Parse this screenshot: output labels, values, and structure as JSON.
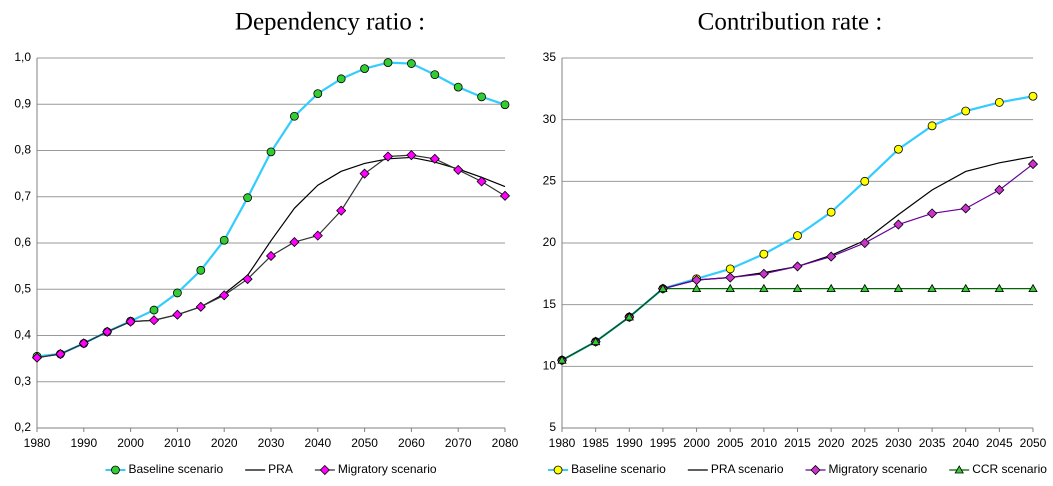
{
  "chart_data": [
    {
      "type": "line",
      "title": "Dependency ratio :",
      "x": [
        1980,
        1985,
        1990,
        1995,
        2000,
        2005,
        2010,
        2015,
        2020,
        2025,
        2030,
        2035,
        2040,
        2045,
        2050,
        2055,
        2060,
        2065,
        2070,
        2075,
        2080
      ],
      "xlim": [
        1980,
        2080
      ],
      "xticks": [
        1980,
        1990,
        2000,
        2010,
        2020,
        2030,
        2040,
        2050,
        2060,
        2070,
        2080
      ],
      "ylim": [
        0.2,
        1.0
      ],
      "yticks": [
        {
          "value": 0.2,
          "label": "0,2"
        },
        {
          "value": 0.3,
          "label": "0,3"
        },
        {
          "value": 0.4,
          "label": "0,4"
        },
        {
          "value": 0.5,
          "label": "0,5"
        },
        {
          "value": 0.6,
          "label": "0,6"
        },
        {
          "value": 0.7,
          "label": "0,7"
        },
        {
          "value": 0.8,
          "label": "0,8"
        },
        {
          "value": 0.9,
          "label": "0,9"
        },
        {
          "value": 1.0,
          "label": "1,0"
        }
      ],
      "grid": true,
      "series": [
        {
          "name": "Baseline scenario",
          "color": "#33ccff",
          "marker": "circle",
          "marker_color": "#33cc33",
          "values": [
            0.355,
            0.36,
            0.383,
            0.408,
            0.431,
            0.455,
            0.492,
            0.541,
            0.606,
            0.698,
            0.797,
            0.874,
            0.923,
            0.955,
            0.977,
            0.99,
            0.988,
            0.964,
            0.937,
            0.916,
            0.899
          ]
        },
        {
          "name": "PRA",
          "color": "#000000",
          "marker": "none",
          "marker_color": "#000000",
          "values": [
            0.352,
            0.36,
            0.383,
            0.408,
            0.43,
            0.433,
            0.445,
            0.462,
            0.49,
            0.53,
            0.605,
            0.675,
            0.725,
            0.755,
            0.772,
            0.782,
            0.785,
            0.775,
            0.76,
            0.742,
            0.722
          ]
        },
        {
          "name": "Migratory scenario",
          "color": "#333333",
          "marker": "diamond",
          "marker_color": "#ff00ff",
          "values": [
            0.352,
            0.36,
            0.383,
            0.408,
            0.43,
            0.433,
            0.445,
            0.462,
            0.487,
            0.522,
            0.572,
            0.602,
            0.616,
            0.67,
            0.75,
            0.787,
            0.79,
            0.782,
            0.758,
            0.733,
            0.702
          ]
        }
      ]
    },
    {
      "type": "line",
      "title": "Contribution rate :",
      "x": [
        1980,
        1985,
        1990,
        1995,
        2000,
        2005,
        2010,
        2015,
        2020,
        2025,
        2030,
        2035,
        2040,
        2045,
        2050
      ],
      "xlim": [
        1980,
        2050
      ],
      "xticks": [
        1980,
        1985,
        1990,
        1995,
        2000,
        2005,
        2010,
        2015,
        2020,
        2025,
        2030,
        2035,
        2040,
        2045,
        2050
      ],
      "ylim": [
        5,
        35
      ],
      "yticks": [
        5,
        10,
        15,
        20,
        25,
        30,
        35
      ],
      "grid": true,
      "series": [
        {
          "name": "Baseline scenario",
          "color": "#33ccff",
          "marker": "circle",
          "marker_color": "#ffff00",
          "values": [
            10.5,
            12,
            14,
            16.3,
            17.1,
            17.9,
            19.1,
            20.6,
            22.5,
            25.0,
            27.6,
            29.5,
            30.7,
            31.4,
            31.9
          ]
        },
        {
          "name": "PRA scenario",
          "color": "#000000",
          "marker": "none",
          "marker_color": "#000000",
          "values": [
            10.5,
            12,
            14,
            16.3,
            17.0,
            17.2,
            17.6,
            18.1,
            19.0,
            20.2,
            22.3,
            24.3,
            25.8,
            26.5,
            27.0
          ]
        },
        {
          "name": "Migratory scenario",
          "color": "#660099",
          "marker": "diamond",
          "marker_color": "#cc33cc",
          "values": [
            10.5,
            12,
            14,
            16.3,
            17.0,
            17.2,
            17.5,
            18.1,
            18.9,
            20.0,
            21.5,
            22.4,
            22.8,
            24.3,
            26.4
          ]
        },
        {
          "name": "CCR scenario",
          "color": "#006600",
          "marker": "triangle",
          "marker_color": "#33cc33",
          "values": [
            10.5,
            12,
            14,
            16.3,
            16.3,
            16.3,
            16.3,
            16.3,
            16.3,
            16.3,
            16.3,
            16.3,
            16.3,
            16.3,
            16.3
          ]
        }
      ]
    }
  ]
}
